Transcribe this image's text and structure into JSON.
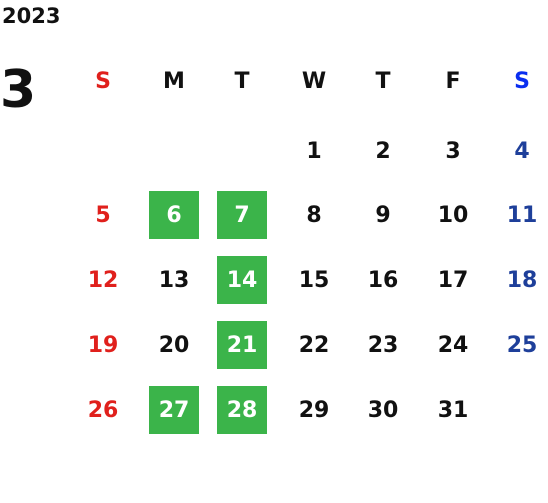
{
  "calendar": {
    "year": "2023",
    "month": "3",
    "weekdays": [
      "S",
      "M",
      "T",
      "W",
      "T",
      "F",
      "S"
    ],
    "weeks": [
      [
        null,
        null,
        null,
        {
          "day": 1
        },
        {
          "day": 2
        },
        {
          "day": 3
        },
        {
          "day": 4
        }
      ],
      [
        {
          "day": 5
        },
        {
          "day": 6,
          "highlight": true
        },
        {
          "day": 7,
          "highlight": true
        },
        {
          "day": 8
        },
        {
          "day": 9
        },
        {
          "day": 10
        },
        {
          "day": 11
        }
      ],
      [
        {
          "day": 12
        },
        {
          "day": 13
        },
        {
          "day": 14,
          "highlight": true
        },
        {
          "day": 15
        },
        {
          "day": 16
        },
        {
          "day": 17
        },
        {
          "day": 18
        }
      ],
      [
        {
          "day": 19
        },
        {
          "day": 20
        },
        {
          "day": 21,
          "highlight": true
        },
        {
          "day": 22
        },
        {
          "day": 23
        },
        {
          "day": 24
        },
        {
          "day": 25
        }
      ],
      [
        {
          "day": 26
        },
        {
          "day": 27,
          "highlight": true
        },
        {
          "day": 28,
          "highlight": true
        },
        {
          "day": 29
        },
        {
          "day": 30
        },
        {
          "day": 31
        },
        null
      ]
    ]
  }
}
